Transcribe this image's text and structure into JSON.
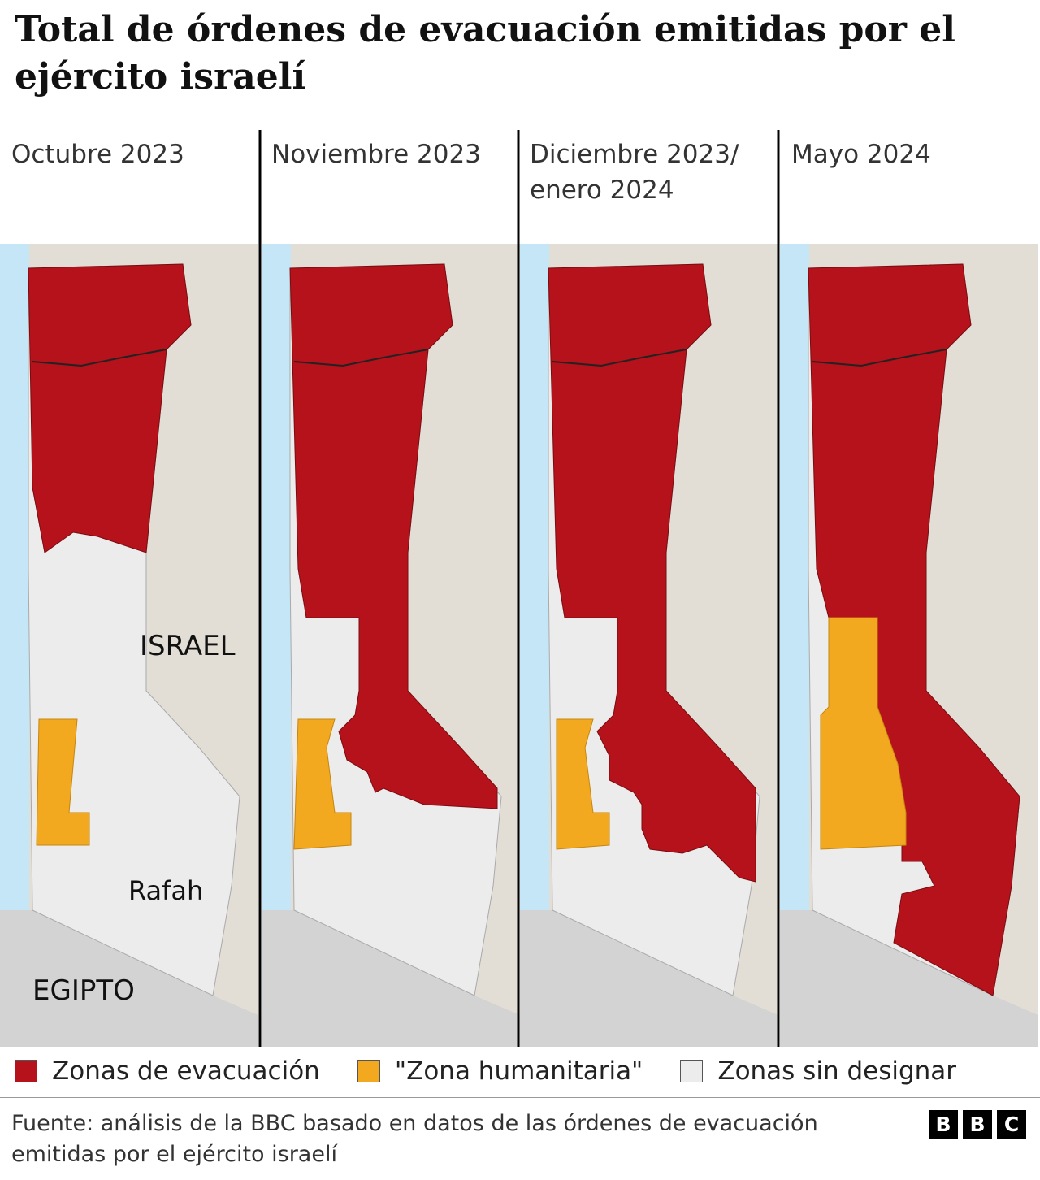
{
  "title": "Total de órdenes de evacuación emitidas por el ejército israelí",
  "panels": [
    {
      "label": "Octubre 2023"
    },
    {
      "label": "Noviembre 2023"
    },
    {
      "label": "Diciembre 2023/ enero 2024"
    },
    {
      "label": "Mayo 2024"
    }
  ],
  "map_labels": {
    "israel": "ISRAEL",
    "rafah": "Rafah",
    "egypt": "EGIPTO"
  },
  "legend": [
    {
      "label": "Zonas de evacuación"
    },
    {
      "label": "\"Zona humanitaria\""
    },
    {
      "label": "Zonas sin designar"
    }
  ],
  "source": "Fuente: análisis de la BBC basado en datos de las órdenes de evacuación emitidas por el ejército israelí",
  "logo": [
    "B",
    "B",
    "C"
  ]
}
